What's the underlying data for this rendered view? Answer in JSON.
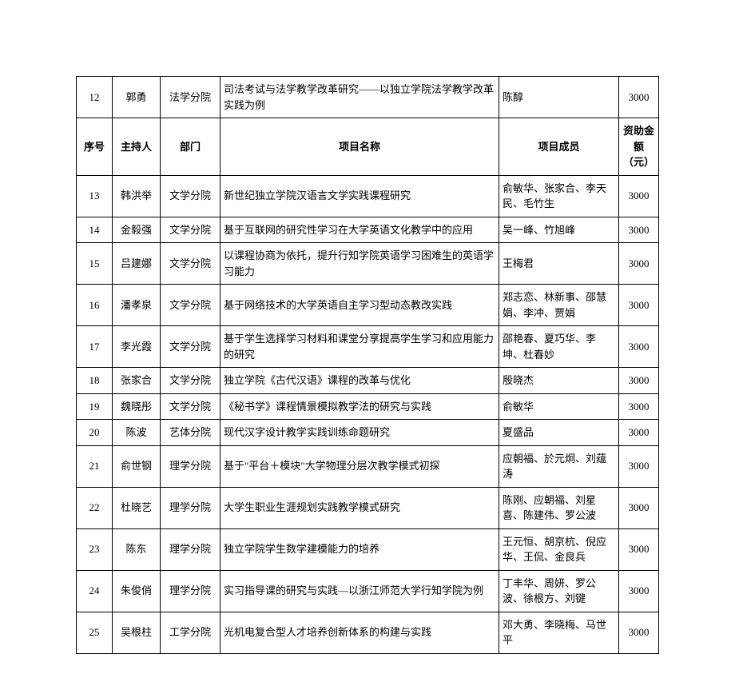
{
  "table": {
    "header": {
      "id": "序号",
      "host": "主持人",
      "dept": "部门",
      "name": "项目名称",
      "members": "项目成员",
      "fund": "资助金额（元）"
    },
    "preHeaderRow": {
      "id": "12",
      "host": "郭勇",
      "dept": "法学分院",
      "name": "司法考试与法学教学改革研究——以独立学院法学教学改革实践为例",
      "members": "陈醇",
      "fund": "3000"
    },
    "rows": [
      {
        "id": "13",
        "host": "韩洪举",
        "dept": "文学分院",
        "name": "新世纪独立学院汉语言文学实践课程研究",
        "members": "俞敏华、张家合、李天民、毛竹生",
        "fund": "3000"
      },
      {
        "id": "14",
        "host": "金毅强",
        "dept": "文学分院",
        "name": "基于互联网的研究性学习在大学英语文化教学中的应用",
        "members": "吴一峰、竹旭峰",
        "fund": "3000"
      },
      {
        "id": "15",
        "host": "吕建娜",
        "dept": "文学分院",
        "name": "以课程协商为依托，提升行知学院英语学习困难生的英语学习能力",
        "members": "王梅君",
        "fund": "3000"
      },
      {
        "id": "16",
        "host": "潘孝泉",
        "dept": "文学分院",
        "name": "基于网络技术的大学英语自主学习型动态教改实践",
        "members": "郑志恋、林新事、邵慧娟、李冲、贾娟",
        "fund": "3000"
      },
      {
        "id": "17",
        "host": "李光霞",
        "dept": "文学分院",
        "name": "基于学生选择学习材料和课堂分享提高学生学习和应用能力的研究",
        "members": "邵艳春、夏巧华、李坤、杜春妙",
        "fund": "3000"
      },
      {
        "id": "18",
        "host": "张家合",
        "dept": "文学分院",
        "name": "独立学院《古代汉语》课程的改革与优化",
        "members": "殷晓杰",
        "fund": "3000"
      },
      {
        "id": "19",
        "host": "魏晓彤",
        "dept": "文学分院",
        "name": "《秘书学》课程情景模拟教学法的研究与实践",
        "members": "俞敏华",
        "fund": "3000"
      },
      {
        "id": "20",
        "host": "陈波",
        "dept": "艺体分院",
        "name": "现代汉字设计教学实践训练命题研究",
        "members": "夏盛品",
        "fund": "3000"
      },
      {
        "id": "21",
        "host": "俞世钢",
        "dept": "理学分院",
        "name": "基于\"平台＋模块\"大学物理分层次教学模式初探",
        "members": "应朝福、於元炯、刘蕴涛",
        "fund": "3000"
      },
      {
        "id": "22",
        "host": "杜晓艺",
        "dept": "理学分院",
        "name": "大学生职业生涯规划实践教学模式研究",
        "members": "陈刚、应朝福、刘星喜、陈建伟、罗公波",
        "fund": "3000"
      },
      {
        "id": "23",
        "host": "陈东",
        "dept": "理学分院",
        "name": "独立学院学生数学建模能力的培养",
        "members": "王元恒、胡京杭、倪应华、王侃、金良兵",
        "fund": "3000"
      },
      {
        "id": "24",
        "host": "朱俊俏",
        "dept": "理学分院",
        "name": "实习指导课的研究与实践—以浙江师范大学行知学院为例",
        "members": "丁丰华、周妍、罗公波、徐根方、刘键",
        "fund": "3000"
      },
      {
        "id": "25",
        "host": "吴根柱",
        "dept": "工学分院",
        "name": "光机电复合型人才培养创新体系的构建与实践",
        "members": "邓大勇、李晓梅、马世平",
        "fund": "3000"
      }
    ]
  }
}
